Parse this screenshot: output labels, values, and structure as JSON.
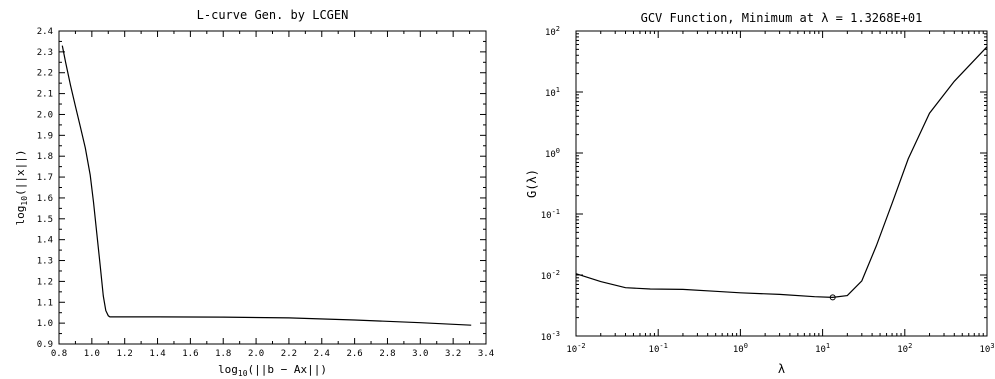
{
  "chart_data": [
    {
      "type": "line",
      "title": "L-curve Gen. by LCGEN",
      "xlabel_main": "log",
      "xlabel_sub": "10",
      "xlabel_rest": "(||b − Ax||)",
      "ylabel_main": "log",
      "ylabel_sub": "10",
      "ylabel_rest": "(||x||)",
      "xlim": [
        0.8,
        3.4
      ],
      "ylim": [
        0.9,
        2.4
      ],
      "xticks": [
        "0.8",
        "1.0",
        "1.2",
        "1.4",
        "1.6",
        "1.8",
        "2.0",
        "2.2",
        "2.4",
        "2.6",
        "2.8",
        "3.0",
        "3.2",
        "3.4"
      ],
      "yticks": [
        "0.9",
        "1.0",
        "1.1",
        "1.2",
        "1.3",
        "1.4",
        "1.5",
        "1.6",
        "1.7",
        "1.8",
        "1.9",
        "2.0",
        "2.1",
        "2.2",
        "2.3",
        "2.4"
      ],
      "series": [
        {
          "x": [
            0.82,
            0.84,
            0.87,
            0.9,
            0.93,
            0.96,
            0.99,
            1.01,
            1.03,
            1.05,
            1.07,
            1.085,
            1.1,
            1.11,
            1.13,
            1.2,
            1.4,
            1.8,
            2.2,
            2.6,
            3.0,
            3.31
          ],
          "y": [
            2.33,
            2.25,
            2.14,
            2.04,
            1.94,
            1.84,
            1.71,
            1.58,
            1.43,
            1.28,
            1.13,
            1.06,
            1.035,
            1.03,
            1.03,
            1.03,
            1.03,
            1.029,
            1.025,
            1.015,
            1.002,
            0.99
          ]
        }
      ]
    },
    {
      "type": "line",
      "title": "GCV Function,  Minimum at λ =  1.3268E+01",
      "xlabel": "λ",
      "ylabel": "G(λ)",
      "xscale": "log",
      "yscale": "log",
      "xlim": [
        0.01,
        1000
      ],
      "ylim": [
        0.001,
        100
      ],
      "xticks": [
        {
          "value": 0.01,
          "base": "10",
          "exp": "-2"
        },
        {
          "value": 0.1,
          "base": "10",
          "exp": "-1"
        },
        {
          "value": 1,
          "base": "10",
          "exp": "0"
        },
        {
          "value": 10,
          "base": "10",
          "exp": "1"
        },
        {
          "value": 100,
          "base": "10",
          "exp": "2"
        },
        {
          "value": 1000,
          "base": "10",
          "exp": "3"
        }
      ],
      "yticks": [
        {
          "value": 0.001,
          "base": "10",
          "exp": "-3"
        },
        {
          "value": 0.01,
          "base": "10",
          "exp": "-2"
        },
        {
          "value": 0.1,
          "base": "10",
          "exp": "-1"
        },
        {
          "value": 1,
          "base": "10",
          "exp": "0"
        },
        {
          "value": 10,
          "base": "10",
          "exp": "1"
        },
        {
          "value": 100,
          "base": "10",
          "exp": "2"
        }
      ],
      "series": [
        {
          "x": [
            0.01,
            0.02,
            0.04,
            0.08,
            0.2,
            0.5,
            1,
            3,
            8,
            13.268,
            20,
            30,
            45,
            70,
            110,
            200,
            400,
            1000
          ],
          "y": [
            0.0105,
            0.0078,
            0.0062,
            0.0059,
            0.0058,
            0.0054,
            0.0051,
            0.0048,
            0.0044,
            0.0043,
            0.0046,
            0.008,
            0.03,
            0.15,
            0.8,
            4.5,
            15,
            55
          ]
        }
      ],
      "minimum": {
        "x": 13.268,
        "y": 0.0043
      }
    }
  ]
}
